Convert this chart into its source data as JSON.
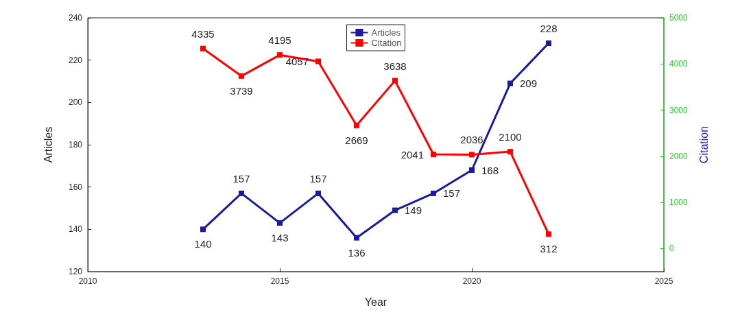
{
  "chart_data": {
    "type": "line",
    "xlabel": "Year",
    "ylabel": "Articles",
    "y2label": "Citation",
    "x": [
      2013,
      2014,
      2015,
      2016,
      2017,
      2018,
      2019,
      2020,
      2021,
      2022
    ],
    "series": [
      {
        "name": "Articles",
        "color": "#1a1a9c",
        "values": [
          140,
          157,
          143,
          157,
          136,
          149,
          157,
          168,
          209,
          228
        ]
      },
      {
        "name": "Citation",
        "color": "#ff0000",
        "axis": "y2",
        "values": [
          4335,
          3739,
          4195,
          4057,
          2669,
          3638,
          2041,
          2036,
          2100,
          312
        ]
      }
    ],
    "xlim": [
      2010,
      2025
    ],
    "xticks": [
      2010,
      2015,
      2020,
      2025
    ],
    "ylim": [
      120,
      240
    ],
    "yticks": [
      120,
      140,
      160,
      180,
      200,
      220,
      240
    ],
    "y2lim": [
      -500,
      5000
    ],
    "y2ticks": [
      0,
      1000,
      2000,
      3000,
      4000,
      5000
    ],
    "data_labels": true,
    "legend": "top",
    "marker": "square",
    "line_style": "solid",
    "grid": false
  }
}
